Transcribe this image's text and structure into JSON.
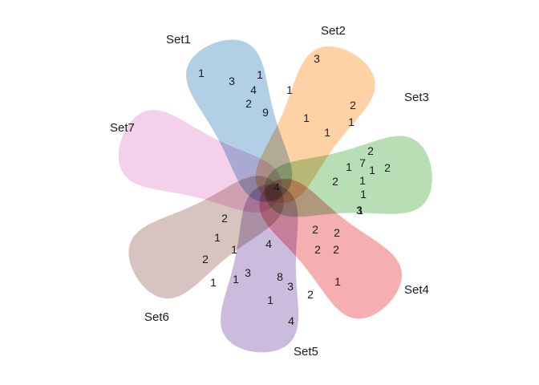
{
  "diagram": {
    "type": "venn",
    "sets": [
      {
        "name": "Set1",
        "color": "#1f78b4"
      },
      {
        "name": "Set2",
        "color": "#ff7f00"
      },
      {
        "name": "Set3",
        "color": "#33a02c"
      },
      {
        "name": "Set4",
        "color": "#e31a1c"
      },
      {
        "name": "Set5",
        "color": "#6a3d9a"
      },
      {
        "name": "Set6",
        "color": "#8c564b"
      },
      {
        "name": "Set7",
        "color": "#e377c2"
      }
    ],
    "region_counts": [
      "1",
      "3",
      "1",
      "4",
      "1",
      "2",
      "9",
      "3",
      "1",
      "2",
      "1",
      "1",
      "2",
      "1",
      "7",
      "1",
      "2",
      "1",
      "2",
      "1",
      "1",
      "4",
      "3",
      "2",
      "2",
      "2",
      "1",
      "2",
      "2",
      "2",
      "1",
      "4",
      "3",
      "1",
      "8",
      "3",
      "1",
      "2",
      "1",
      "1",
      "4",
      "4",
      "3"
    ]
  }
}
